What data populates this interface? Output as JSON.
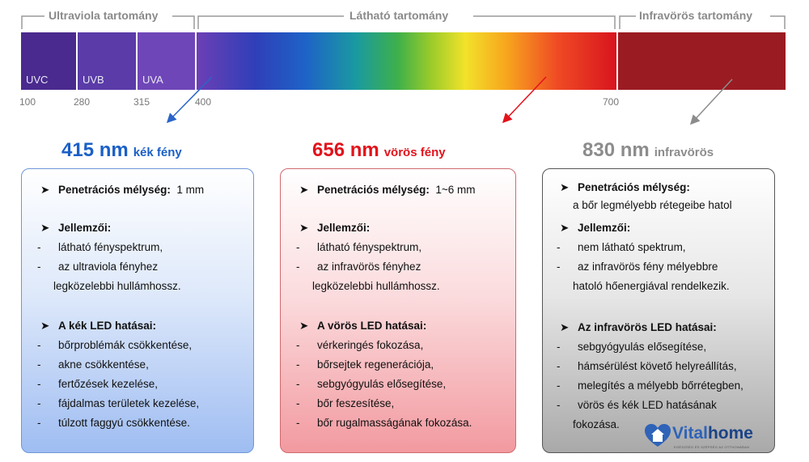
{
  "ranges": {
    "uv": "Ultraviola tartomány",
    "visible": "Látható tartomány",
    "ir": "Infravörös tartomány"
  },
  "segments": {
    "uvc": "UVC",
    "uvb": "UVB",
    "uva": "UVA"
  },
  "ticks": [
    "100",
    "280",
    "315",
    "400",
    "700"
  ],
  "colors": {
    "blue": "#1a5fc7",
    "red": "#e3121b",
    "gray": "#8c8c8c"
  },
  "columns": [
    {
      "nm": "415 nm",
      "name": "kék fény",
      "lines": [
        {
          "bullet": "➤",
          "bold": "Penetrációs mélység:",
          "text": "  1 mm"
        },
        {
          "bullet": "➤",
          "bold": "Jellemzői:",
          "text": ""
        },
        {
          "bullet": "-",
          "bold": "",
          "text": "látható fényspektrum,"
        },
        {
          "bullet": "-",
          "bold": "",
          "text": "az ultraviola fényhez"
        },
        {
          "bullet": "",
          "bold": "",
          "text": "legközelebbi hullámhossz."
        },
        {
          "bullet": "➤",
          "bold": "A kék LED hatásai:",
          "text": ""
        },
        {
          "bullet": "-",
          "bold": "",
          "text": "bőrproblémák csökkentése,"
        },
        {
          "bullet": "-",
          "bold": "",
          "text": "akne csökkentése,"
        },
        {
          "bullet": "-",
          "bold": "",
          "text": "fertőzések kezelése,"
        },
        {
          "bullet": "-",
          "bold": "",
          "text": "fájdalmas területek kezelése,"
        },
        {
          "bullet": "-",
          "bold": "",
          "text": "túlzott faggyú csökkentése."
        }
      ]
    },
    {
      "nm": "656 nm",
      "name": "vörös fény",
      "lines": [
        {
          "bullet": "➤",
          "bold": "Penetrációs mélység:",
          "text": "  1~6 mm"
        },
        {
          "bullet": "➤",
          "bold": "Jellemzői:",
          "text": ""
        },
        {
          "bullet": "-",
          "bold": "",
          "text": "látható fényspektrum,"
        },
        {
          "bullet": "-",
          "bold": "",
          "text": "az infravörös fényhez"
        },
        {
          "bullet": "",
          "bold": "",
          "text": "legközelebbi hullámhossz."
        },
        {
          "bullet": "➤",
          "bold": "A vörös LED hatásai:",
          "text": ""
        },
        {
          "bullet": "-",
          "bold": "",
          "text": "vérkeringés fokozása,"
        },
        {
          "bullet": "-",
          "bold": "",
          "text": "bőrsejtek regenerációja,"
        },
        {
          "bullet": "-",
          "bold": "",
          "text": "sebgyógyulás elősegítése,"
        },
        {
          "bullet": "-",
          "bold": "",
          "text": "bőr feszesítése,"
        },
        {
          "bullet": "-",
          "bold": "",
          "text": "bőr rugalmasságának fokozása."
        }
      ]
    },
    {
      "nm": "830 nm",
      "name": "infravörös",
      "lines": [
        {
          "bullet": "➤",
          "bold": "Penetrációs mélység:",
          "text": ""
        },
        {
          "bullet": "",
          "bold": "",
          "text": "a bőr legmélyebb rétegeibe hatol"
        },
        {
          "bullet": "➤",
          "bold": "Jellemzői:",
          "text": ""
        },
        {
          "bullet": "-",
          "bold": "",
          "text": "nem látható spektrum,"
        },
        {
          "bullet": "-",
          "bold": "",
          "text": "az infravörös fény mélyebbre"
        },
        {
          "bullet": "",
          "bold": "",
          "text": "hatoló hőenergiával rendelkezik."
        },
        {
          "bullet": "➤",
          "bold": "Az infravörös LED hatásai:",
          "text": ""
        },
        {
          "bullet": "-",
          "bold": "",
          "text": "sebgyógyulás elősegítése,"
        },
        {
          "bullet": "-",
          "bold": "",
          "text": "hámsérülést követő helyreállítás,"
        },
        {
          "bullet": "-",
          "bold": "",
          "text": "melegítés a mélyebb bőrrétegben,"
        },
        {
          "bullet": "-",
          "bold": "",
          "text": "vörös és kék LED hatásának"
        },
        {
          "bullet": "",
          "bold": "",
          "text": "fokozása."
        }
      ]
    }
  ],
  "logo": {
    "brand_a": "Vital",
    "brand_b": "home",
    "tagline": "EGÉSZSÉG ÉS SZÉPSÉG AZ OTTHONÁBAN"
  }
}
